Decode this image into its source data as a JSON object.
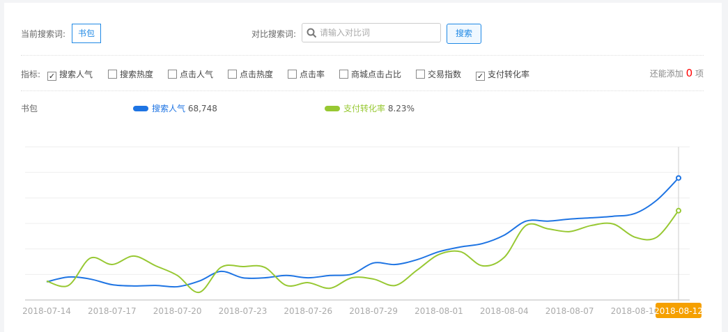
{
  "search": {
    "current_label": "当前搜索词:",
    "current_keyword": "书包",
    "compare_label": "对比搜索词:",
    "compare_placeholder": "请输入对比词",
    "compare_value": "",
    "search_button": "搜索"
  },
  "metrics": {
    "label": "指标:",
    "items": [
      {
        "label": "搜索人气",
        "checked": true
      },
      {
        "label": "搜索热度",
        "checked": false
      },
      {
        "label": "点击人气",
        "checked": false
      },
      {
        "label": "点击热度",
        "checked": false
      },
      {
        "label": "点击率",
        "checked": false
      },
      {
        "label": "商城点击占比",
        "checked": false
      },
      {
        "label": "交易指数",
        "checked": false
      },
      {
        "label": "支付转化率",
        "checked": true
      }
    ],
    "remaining_prefix": "还能添加",
    "remaining_count": "0",
    "remaining_suffix": "项"
  },
  "legend": {
    "keyword": "书包",
    "series": [
      {
        "name": "搜索人气",
        "value": "68,748",
        "color": "#1e74e3"
      },
      {
        "name": "支付转化率",
        "value": "8.23%",
        "color": "#97c832"
      }
    ]
  },
  "chart_data": {
    "type": "line",
    "grid": true,
    "y_tick_labels": "none",
    "x_tick_labels": [
      "2018-07-14",
      "2018-07-17",
      "2018-07-20",
      "2018-07-23",
      "2018-07-26",
      "2018-07-29",
      "2018-08-01",
      "2018-08-04",
      "2018-08-07",
      "2018-08-10",
      "2018-08-12"
    ],
    "highlighted_x": "2018-08-12",
    "highlight_color": "#f5a000",
    "x_start": "2018-07-14",
    "x_end": "2018-08-12",
    "ylim": [
      0,
      6
    ],
    "series": [
      {
        "name": "搜索人气",
        "color": "#1e74e3",
        "values": [
          0.71,
          0.9,
          0.82,
          0.6,
          0.55,
          0.57,
          0.52,
          0.74,
          1.12,
          0.87,
          0.87,
          0.96,
          0.87,
          0.96,
          1.01,
          1.45,
          1.39,
          1.58,
          1.89,
          2.08,
          2.21,
          2.54,
          3.09,
          3.09,
          3.17,
          3.22,
          3.28,
          3.39,
          3.91,
          4.78
        ]
      },
      {
        "name": "支付转化率",
        "color": "#97c832",
        "values": [
          0.74,
          0.57,
          1.64,
          1.39,
          1.72,
          1.34,
          0.96,
          0.3,
          1.28,
          1.31,
          1.28,
          0.57,
          0.68,
          0.46,
          0.87,
          0.82,
          0.57,
          1.17,
          1.78,
          1.89,
          1.34,
          1.67,
          2.92,
          2.79,
          2.68,
          2.92,
          2.98,
          2.46,
          2.46,
          3.5
        ]
      }
    ]
  }
}
